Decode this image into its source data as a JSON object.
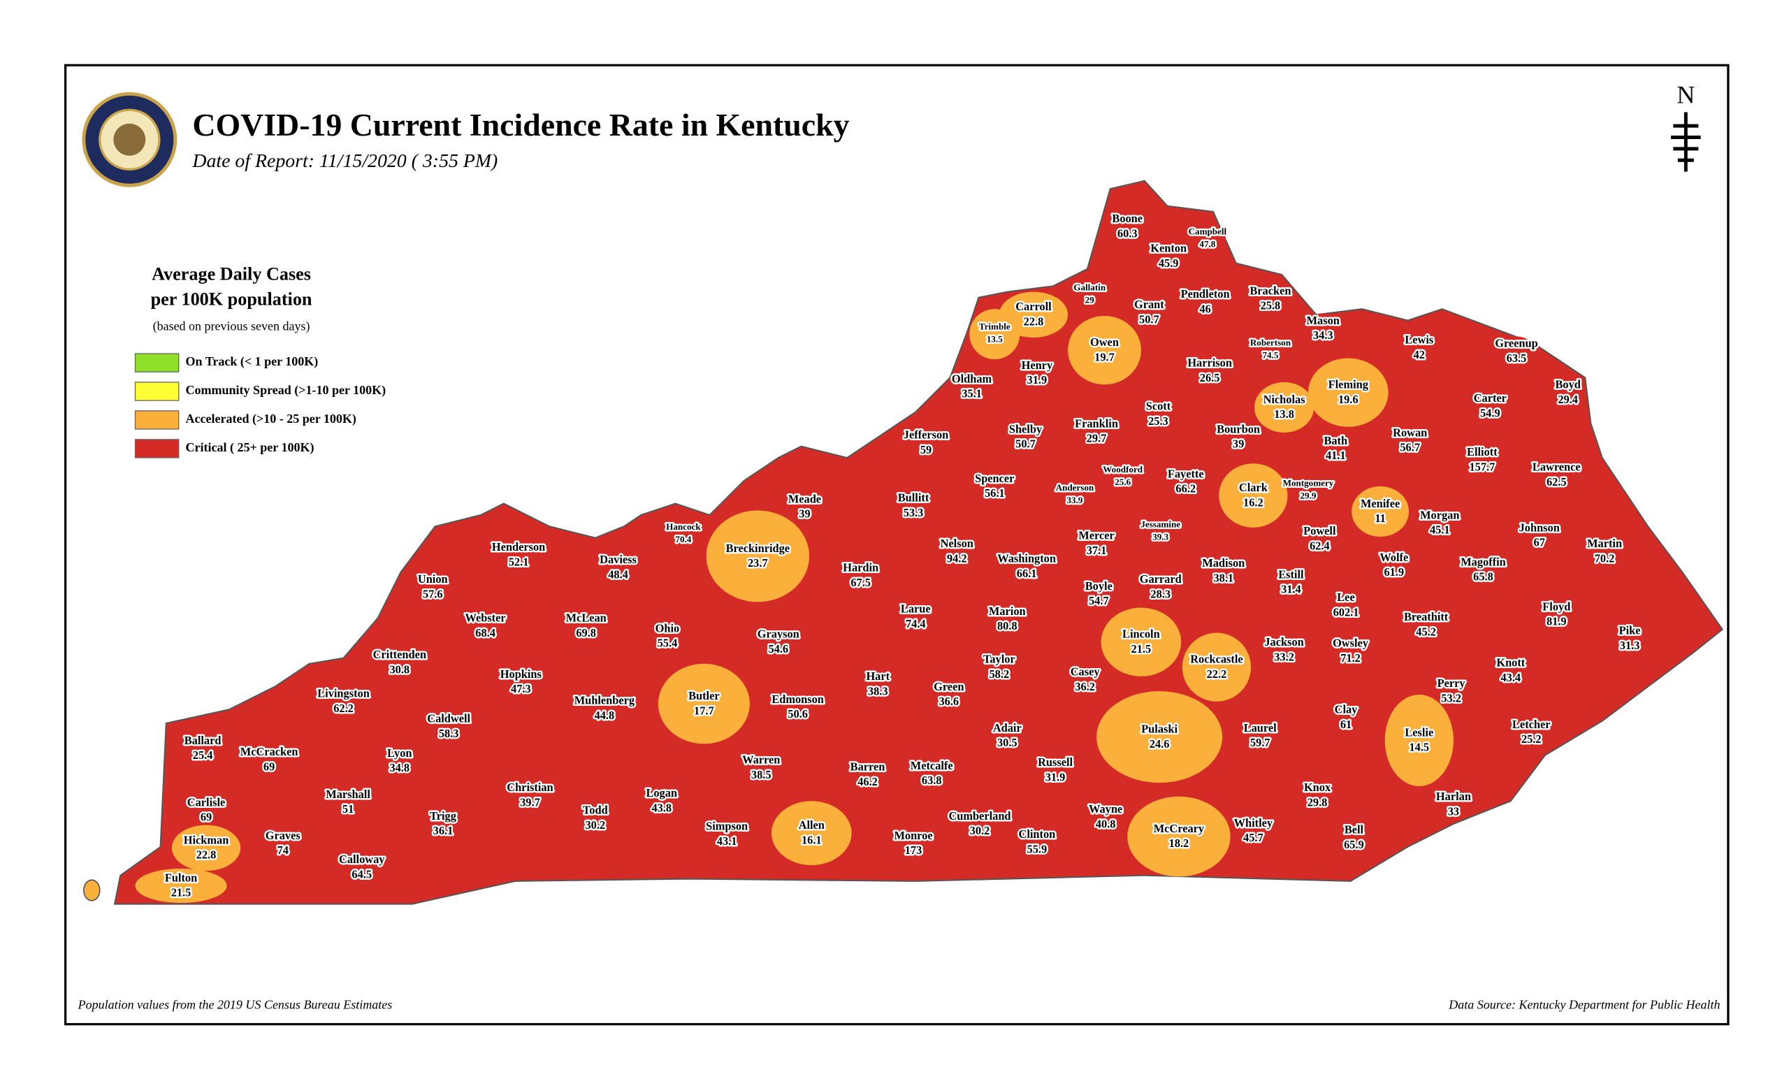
{
  "header": {
    "title": "COVID-19 Current Incidence Rate in Kentucky",
    "date": "Date of Report: 11/15/2020 ( 3:55 PM)"
  },
  "legend": {
    "title": [
      "Average Daily Cases",
      "per 100K population"
    ],
    "note": "(based on previous seven days)",
    "items": [
      {
        "label": "On Track (< 1 per 100K)",
        "color": "#8fe02b"
      },
      {
        "label": "Community Spread (>1-10 per 100K)",
        "color": "#ffff33"
      },
      {
        "label": "Accelerated (>10 - 25 per 100K)",
        "color": "#fbb03b"
      },
      {
        "label": "Critical ( 25+ per 100K)",
        "color": "#d52b27"
      }
    ]
  },
  "north": "N",
  "counties": [
    {
      "name": "Boone",
      "value": 60.3,
      "color": "#d52b27"
    },
    {
      "name": "Campbell",
      "value": 47.8,
      "color": "#d52b27"
    },
    {
      "name": "Kenton",
      "value": 45.9,
      "color": "#d52b27"
    },
    {
      "name": "Gallatin",
      "value": 29,
      "color": "#d52b27"
    },
    {
      "name": "Grant",
      "value": 50.7,
      "color": "#d52b27"
    },
    {
      "name": "Pendleton",
      "value": 46,
      "color": "#d52b27"
    },
    {
      "name": "Bracken",
      "value": 25.8,
      "color": "#d52b27"
    },
    {
      "name": "Carroll",
      "value": 22.8,
      "color": "#fbb03b"
    },
    {
      "name": "Trimble",
      "value": 13.5,
      "color": "#fbb03b"
    },
    {
      "name": "Owen",
      "value": 19.7,
      "color": "#fbb03b"
    },
    {
      "name": "Mason",
      "value": 34.3,
      "color": "#d52b27"
    },
    {
      "name": "Robertson",
      "value": 74.5,
      "color": "#d52b27"
    },
    {
      "name": "Lewis",
      "value": 42,
      "color": "#d52b27"
    },
    {
      "name": "Greenup",
      "value": 63.5,
      "color": "#d52b27"
    },
    {
      "name": "Henry",
      "value": 31.9,
      "color": "#d52b27"
    },
    {
      "name": "Oldham",
      "value": 35.1,
      "color": "#d52b27"
    },
    {
      "name": "Harrison",
      "value": 26.5,
      "color": "#d52b27"
    },
    {
      "name": "Fleming",
      "value": 19.6,
      "color": "#fbb03b"
    },
    {
      "name": "Boyd",
      "value": 29.4,
      "color": "#d52b27"
    },
    {
      "name": "Nicholas",
      "value": 13.8,
      "color": "#fbb03b"
    },
    {
      "name": "Carter",
      "value": 54.9,
      "color": "#d52b27"
    },
    {
      "name": "Scott",
      "value": 25.3,
      "color": "#d52b27"
    },
    {
      "name": "Franklin",
      "value": 29.7,
      "color": "#d52b27"
    },
    {
      "name": "Shelby",
      "value": 50.7,
      "color": "#d52b27"
    },
    {
      "name": "Jefferson",
      "value": 59,
      "color": "#d52b27"
    },
    {
      "name": "Bourbon",
      "value": 39,
      "color": "#d52b27"
    },
    {
      "name": "Bath",
      "value": 41.1,
      "color": "#d52b27"
    },
    {
      "name": "Rowan",
      "value": 56.7,
      "color": "#d52b27"
    },
    {
      "name": "Elliott",
      "value": 157.7,
      "color": "#d52b27"
    },
    {
      "name": "Woodford",
      "value": 25.6,
      "color": "#d52b27"
    },
    {
      "name": "Fayette",
      "value": 66.2,
      "color": "#d52b27"
    },
    {
      "name": "Lawrence",
      "value": 62.5,
      "color": "#d52b27"
    },
    {
      "name": "Spencer",
      "value": 56.1,
      "color": "#d52b27"
    },
    {
      "name": "Anderson",
      "value": 33.9,
      "color": "#d52b27"
    },
    {
      "name": "Clark",
      "value": 16.2,
      "color": "#fbb03b"
    },
    {
      "name": "Montgomery",
      "value": 29.9,
      "color": "#d52b27"
    },
    {
      "name": "Menifee",
      "value": 11,
      "color": "#fbb03b"
    },
    {
      "name": "Meade",
      "value": 39,
      "color": "#d52b27"
    },
    {
      "name": "Bullitt",
      "value": 53.3,
      "color": "#d52b27"
    },
    {
      "name": "Hancock",
      "value": 70.4,
      "color": "#d52b27"
    },
    {
      "name": "Jessamine",
      "value": 39.3,
      "color": "#d52b27"
    },
    {
      "name": "Morgan",
      "value": 45.1,
      "color": "#d52b27"
    },
    {
      "name": "Johnson",
      "value": 67,
      "color": "#d52b27"
    },
    {
      "name": "Henderson",
      "value": 52.1,
      "color": "#d52b27"
    },
    {
      "name": "Mercer",
      "value": 37.1,
      "color": "#d52b27"
    },
    {
      "name": "Nelson",
      "value": 94.2,
      "color": "#d52b27"
    },
    {
      "name": "Breckinridge",
      "value": 23.7,
      "color": "#fbb03b"
    },
    {
      "name": "Powell",
      "value": 62.4,
      "color": "#d52b27"
    },
    {
      "name": "Martin",
      "value": 70.2,
      "color": "#d52b27"
    },
    {
      "name": "Daviess",
      "value": 48.4,
      "color": "#d52b27"
    },
    {
      "name": "Washington",
      "value": 66.1,
      "color": "#d52b27"
    },
    {
      "name": "Madison",
      "value": 38.1,
      "color": "#d52b27"
    },
    {
      "name": "Wolfe",
      "value": 61.9,
      "color": "#d52b27"
    },
    {
      "name": "Magoffin",
      "value": 65.8,
      "color": "#d52b27"
    },
    {
      "name": "Hardin",
      "value": 67.5,
      "color": "#d52b27"
    },
    {
      "name": "Union",
      "value": 57.6,
      "color": "#d52b27"
    },
    {
      "name": "Boyle",
      "value": 54.7,
      "color": "#d52b27"
    },
    {
      "name": "Garrard",
      "value": 28.3,
      "color": "#d52b27"
    },
    {
      "name": "Estill",
      "value": 31.4,
      "color": "#d52b27"
    },
    {
      "name": "Lee",
      "value": 602.1,
      "color": "#d52b27"
    },
    {
      "name": "Breathitt",
      "value": 45.2,
      "color": "#d52b27"
    },
    {
      "name": "Floyd",
      "value": 81.9,
      "color": "#d52b27"
    },
    {
      "name": "Webster",
      "value": 68.4,
      "color": "#d52b27"
    },
    {
      "name": "McLean",
      "value": 69.8,
      "color": "#d52b27"
    },
    {
      "name": "Larue",
      "value": 74.4,
      "color": "#d52b27"
    },
    {
      "name": "Marion",
      "value": 80.8,
      "color": "#d52b27"
    },
    {
      "name": "Ohio",
      "value": 55.4,
      "color": "#d52b27"
    },
    {
      "name": "Lincoln",
      "value": 21.5,
      "color": "#fbb03b"
    },
    {
      "name": "Jackson",
      "value": 33.2,
      "color": "#d52b27"
    },
    {
      "name": "Owsley",
      "value": 71.2,
      "color": "#d52b27"
    },
    {
      "name": "Grayson",
      "value": 54.6,
      "color": "#d52b27"
    },
    {
      "name": "Pike",
      "value": 31.3,
      "color": "#d52b27"
    },
    {
      "name": "Crittenden",
      "value": 30.8,
      "color": "#d52b27"
    },
    {
      "name": "Taylor",
      "value": 58.2,
      "color": "#d52b27"
    },
    {
      "name": "Rockcastle",
      "value": 22.2,
      "color": "#fbb03b"
    },
    {
      "name": "Knott",
      "value": 43.4,
      "color": "#d52b27"
    },
    {
      "name": "Perry",
      "value": 53.2,
      "color": "#d52b27"
    },
    {
      "name": "Casey",
      "value": 36.2,
      "color": "#d52b27"
    },
    {
      "name": "Hopkins",
      "value": 47.3,
      "color": "#d52b27"
    },
    {
      "name": "Hart",
      "value": 38.3,
      "color": "#d52b27"
    },
    {
      "name": "Green",
      "value": 36.6,
      "color": "#d52b27"
    },
    {
      "name": "Livingston",
      "value": 62.2,
      "color": "#d52b27"
    },
    {
      "name": "Butler",
      "value": 17.7,
      "color": "#fbb03b"
    },
    {
      "name": "Muhlenberg",
      "value": 44.8,
      "color": "#d52b27"
    },
    {
      "name": "Edmonson",
      "value": 50.6,
      "color": "#d52b27"
    },
    {
      "name": "Clay",
      "value": 61,
      "color": "#d52b27"
    },
    {
      "name": "Caldwell",
      "value": 58.3,
      "color": "#d52b27"
    },
    {
      "name": "Laurel",
      "value": 59.7,
      "color": "#d52b27"
    },
    {
      "name": "Pulaski",
      "value": 24.6,
      "color": "#fbb03b"
    },
    {
      "name": "Leslie",
      "value": 14.5,
      "color": "#fbb03b"
    },
    {
      "name": "Letcher",
      "value": 25.2,
      "color": "#d52b27"
    },
    {
      "name": "Adair",
      "value": 30.5,
      "color": "#d52b27"
    },
    {
      "name": "Ballard",
      "value": 25.4,
      "color": "#d52b27"
    },
    {
      "name": "McCracken",
      "value": 69,
      "color": "#d52b27"
    },
    {
      "name": "Lyon",
      "value": 34.8,
      "color": "#d52b27"
    },
    {
      "name": "Warren",
      "value": 38.5,
      "color": "#d52b27"
    },
    {
      "name": "Russell",
      "value": 31.9,
      "color": "#d52b27"
    },
    {
      "name": "Barren",
      "value": 46.2,
      "color": "#d52b27"
    },
    {
      "name": "Metcalfe",
      "value": 63.8,
      "color": "#d52b27"
    },
    {
      "name": "Marshall",
      "value": 51,
      "color": "#d52b27"
    },
    {
      "name": "Christian",
      "value": 39.7,
      "color": "#d52b27"
    },
    {
      "name": "Logan",
      "value": 43.8,
      "color": "#d52b27"
    },
    {
      "name": "Knox",
      "value": 29.8,
      "color": "#d52b27"
    },
    {
      "name": "Harlan",
      "value": 33,
      "color": "#d52b27"
    },
    {
      "name": "Carlisle",
      "value": 69,
      "color": "#d52b27"
    },
    {
      "name": "Trigg",
      "value": 36.1,
      "color": "#d52b27"
    },
    {
      "name": "Todd",
      "value": 30.2,
      "color": "#d52b27"
    },
    {
      "name": "Wayne",
      "value": 40.8,
      "color": "#d52b27"
    },
    {
      "name": "Cumberland",
      "value": 30.2,
      "color": "#d52b27"
    },
    {
      "name": "Whitley",
      "value": 45.7,
      "color": "#d52b27"
    },
    {
      "name": "Simpson",
      "value": 43.1,
      "color": "#d52b27"
    },
    {
      "name": "Allen",
      "value": 16.1,
      "color": "#fbb03b"
    },
    {
      "name": "Graves",
      "value": 74,
      "color": "#d52b27"
    },
    {
      "name": "Hickman",
      "value": 22.8,
      "color": "#fbb03b"
    },
    {
      "name": "Monroe",
      "value": 173,
      "color": "#d52b27"
    },
    {
      "name": "Clinton",
      "value": 55.9,
      "color": "#d52b27"
    },
    {
      "name": "Bell",
      "value": 65.9,
      "color": "#d52b27"
    },
    {
      "name": "McCreary",
      "value": 18.2,
      "color": "#fbb03b"
    },
    {
      "name": "Calloway",
      "value": 64.5,
      "color": "#d52b27"
    },
    {
      "name": "Fulton",
      "value": 21.5,
      "color": "#fbb03b"
    }
  ],
  "footer": {
    "left": "Population values from the 2019 US Census Bureau Estimates",
    "right": "Data Source: Kentucky Department for Public Health"
  }
}
